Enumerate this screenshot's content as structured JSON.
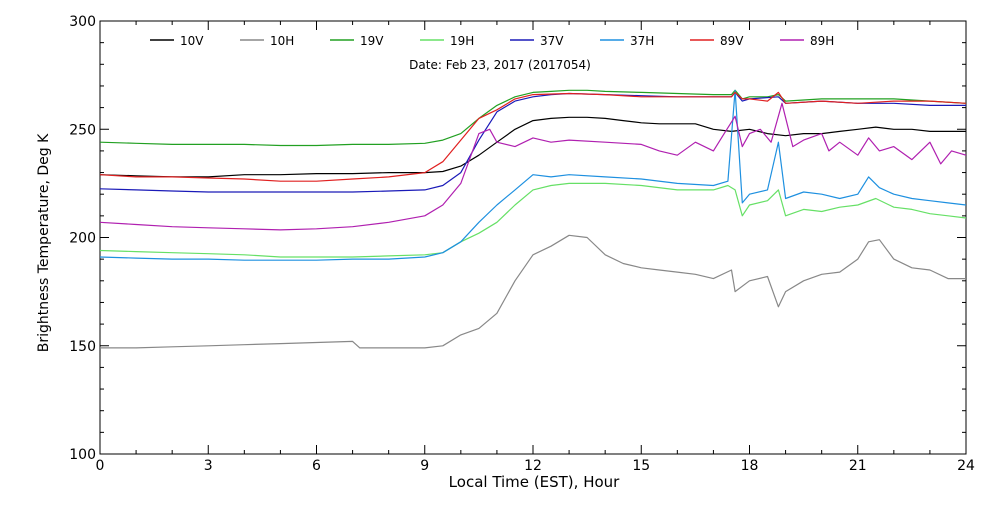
{
  "chart_data": {
    "type": "line",
    "title": "Date: Feb 23, 2017 (2017054)",
    "xlabel": "Local Time (EST), Hour",
    "ylabel": "Brightness Temperature, Deg K",
    "xlim": [
      0,
      24
    ],
    "ylim": [
      100,
      300
    ],
    "x_ticks": [
      0,
      3,
      6,
      9,
      12,
      15,
      18,
      21,
      24
    ],
    "y_ticks": [
      100,
      150,
      200,
      250,
      300
    ],
    "grid": false,
    "legend_position": "top",
    "series": [
      {
        "name": "10V",
        "color": "#000000",
        "points": [
          [
            0,
            229
          ],
          [
            1,
            228.5
          ],
          [
            2,
            228
          ],
          [
            3,
            228
          ],
          [
            4,
            229
          ],
          [
            5,
            229
          ],
          [
            6,
            229.5
          ],
          [
            7,
            229.5
          ],
          [
            8,
            230
          ],
          [
            9,
            230
          ],
          [
            9.5,
            230.5
          ],
          [
            10,
            233
          ],
          [
            10.5,
            238
          ],
          [
            11,
            244
          ],
          [
            11.5,
            250
          ],
          [
            12,
            254
          ],
          [
            12.5,
            255
          ],
          [
            13,
            255.5
          ],
          [
            13.5,
            255.5
          ],
          [
            14,
            255
          ],
          [
            14.5,
            254
          ],
          [
            15,
            253
          ],
          [
            15.5,
            252.5
          ],
          [
            16,
            252.5
          ],
          [
            16.5,
            252.5
          ],
          [
            17,
            250
          ],
          [
            17.5,
            249
          ],
          [
            18,
            250
          ],
          [
            18.5,
            248
          ],
          [
            19,
            247
          ],
          [
            19.5,
            248
          ],
          [
            20,
            248
          ],
          [
            20.5,
            249
          ],
          [
            21,
            250
          ],
          [
            21.5,
            251
          ],
          [
            22,
            250
          ],
          [
            22.5,
            250
          ],
          [
            23,
            249
          ],
          [
            23.5,
            249
          ],
          [
            24,
            249
          ]
        ]
      },
      {
        "name": "10H",
        "color": "#888888",
        "points": [
          [
            0,
            149
          ],
          [
            1,
            149
          ],
          [
            2,
            149.5
          ],
          [
            3,
            150
          ],
          [
            4,
            150.5
          ],
          [
            5,
            151
          ],
          [
            6,
            151.5
          ],
          [
            7,
            152
          ],
          [
            7.2,
            149
          ],
          [
            8,
            149
          ],
          [
            9,
            149
          ],
          [
            9.5,
            150
          ],
          [
            10,
            155
          ],
          [
            10.5,
            158
          ],
          [
            11,
            165
          ],
          [
            11.5,
            180
          ],
          [
            12,
            192
          ],
          [
            12.5,
            196
          ],
          [
            13,
            201
          ],
          [
            13.5,
            200
          ],
          [
            14,
            192
          ],
          [
            14.5,
            188
          ],
          [
            15,
            186
          ],
          [
            15.5,
            185
          ],
          [
            16,
            184
          ],
          [
            16.5,
            183
          ],
          [
            17,
            181
          ],
          [
            17.5,
            185
          ],
          [
            17.6,
            175
          ],
          [
            18,
            180
          ],
          [
            18.5,
            182
          ],
          [
            18.8,
            168
          ],
          [
            19,
            175
          ],
          [
            19.5,
            180
          ],
          [
            20,
            183
          ],
          [
            20.5,
            184
          ],
          [
            21,
            190
          ],
          [
            21.3,
            198
          ],
          [
            21.6,
            199
          ],
          [
            22,
            190
          ],
          [
            22.5,
            186
          ],
          [
            23,
            185
          ],
          [
            23.5,
            181
          ],
          [
            24,
            181
          ]
        ]
      },
      {
        "name": "19V",
        "color": "#22a022",
        "points": [
          [
            0,
            244
          ],
          [
            1,
            243.5
          ],
          [
            2,
            243
          ],
          [
            3,
            243
          ],
          [
            4,
            243
          ],
          [
            5,
            242.5
          ],
          [
            6,
            242.5
          ],
          [
            7,
            243
          ],
          [
            8,
            243
          ],
          [
            9,
            243.5
          ],
          [
            9.5,
            245
          ],
          [
            10,
            248
          ],
          [
            10.5,
            255
          ],
          [
            11,
            261
          ],
          [
            11.5,
            265
          ],
          [
            12,
            267
          ],
          [
            12.5,
            267.5
          ],
          [
            13,
            268
          ],
          [
            13.5,
            268
          ],
          [
            14,
            267.5
          ],
          [
            15,
            267
          ],
          [
            16,
            266.5
          ],
          [
            17,
            266
          ],
          [
            17.5,
            266
          ],
          [
            17.6,
            268
          ],
          [
            17.8,
            264
          ],
          [
            18,
            265
          ],
          [
            18.5,
            265
          ],
          [
            18.8,
            266
          ],
          [
            19,
            263
          ],
          [
            20,
            264
          ],
          [
            21,
            264
          ],
          [
            22,
            264
          ],
          [
            23,
            263
          ],
          [
            24,
            262
          ]
        ]
      },
      {
        "name": "19H",
        "color": "#66e066",
        "points": [
          [
            0,
            194
          ],
          [
            1,
            193.5
          ],
          [
            2,
            193
          ],
          [
            3,
            192.5
          ],
          [
            4,
            192
          ],
          [
            5,
            191
          ],
          [
            6,
            191
          ],
          [
            7,
            191
          ],
          [
            8,
            191.5
          ],
          [
            9,
            192
          ],
          [
            9.5,
            193
          ],
          [
            10,
            198
          ],
          [
            10.5,
            202
          ],
          [
            11,
            207
          ],
          [
            11.5,
            215
          ],
          [
            12,
            222
          ],
          [
            12.5,
            224
          ],
          [
            13,
            225
          ],
          [
            14,
            225
          ],
          [
            15,
            224
          ],
          [
            16,
            222
          ],
          [
            17,
            222
          ],
          [
            17.4,
            224
          ],
          [
            17.6,
            222
          ],
          [
            17.8,
            210
          ],
          [
            18,
            215
          ],
          [
            18.5,
            217
          ],
          [
            18.8,
            222
          ],
          [
            19,
            210
          ],
          [
            19.5,
            213
          ],
          [
            20,
            212
          ],
          [
            20.5,
            214
          ],
          [
            21,
            215
          ],
          [
            21.5,
            218
          ],
          [
            22,
            214
          ],
          [
            22.5,
            213
          ],
          [
            23,
            211
          ],
          [
            23.5,
            210
          ],
          [
            24,
            209
          ]
        ]
      },
      {
        "name": "37V",
        "color": "#1a1ab8",
        "points": [
          [
            0,
            222.5
          ],
          [
            1,
            222
          ],
          [
            2,
            221.5
          ],
          [
            3,
            221
          ],
          [
            4,
            221
          ],
          [
            5,
            221
          ],
          [
            6,
            221
          ],
          [
            7,
            221
          ],
          [
            8,
            221.5
          ],
          [
            9,
            222
          ],
          [
            9.5,
            224
          ],
          [
            10,
            230
          ],
          [
            10.5,
            245
          ],
          [
            11,
            258
          ],
          [
            11.5,
            263
          ],
          [
            12,
            265
          ],
          [
            12.5,
            266
          ],
          [
            13,
            266.5
          ],
          [
            14,
            266
          ],
          [
            15,
            265.5
          ],
          [
            16,
            265
          ],
          [
            17,
            265
          ],
          [
            17.5,
            265
          ],
          [
            17.6,
            267
          ],
          [
            17.8,
            263
          ],
          [
            18,
            264
          ],
          [
            18.8,
            265
          ],
          [
            19,
            262
          ],
          [
            20,
            263
          ],
          [
            21,
            262
          ],
          [
            22,
            262
          ],
          [
            23,
            261
          ],
          [
            24,
            261
          ]
        ]
      },
      {
        "name": "37H",
        "color": "#1e90e0",
        "points": [
          [
            0,
            191
          ],
          [
            1,
            190.5
          ],
          [
            2,
            190
          ],
          [
            3,
            190
          ],
          [
            4,
            189.5
          ],
          [
            5,
            189.5
          ],
          [
            6,
            189.5
          ],
          [
            7,
            190
          ],
          [
            8,
            190
          ],
          [
            9,
            191
          ],
          [
            9.5,
            193
          ],
          [
            10,
            198
          ],
          [
            10.5,
            207
          ],
          [
            11,
            215
          ],
          [
            11.5,
            222
          ],
          [
            12,
            229
          ],
          [
            12.5,
            228
          ],
          [
            13,
            229
          ],
          [
            14,
            228
          ],
          [
            15,
            227
          ],
          [
            16,
            225
          ],
          [
            17,
            224
          ],
          [
            17.4,
            226
          ],
          [
            17.6,
            268
          ],
          [
            17.8,
            216
          ],
          [
            18,
            220
          ],
          [
            18.5,
            222
          ],
          [
            18.8,
            244
          ],
          [
            19,
            218
          ],
          [
            19.5,
            221
          ],
          [
            20,
            220
          ],
          [
            20.5,
            218
          ],
          [
            21,
            220
          ],
          [
            21.3,
            228
          ],
          [
            21.6,
            223
          ],
          [
            22,
            220
          ],
          [
            22.5,
            218
          ],
          [
            23,
            217
          ],
          [
            23.5,
            216
          ],
          [
            24,
            215
          ]
        ]
      },
      {
        "name": "89V",
        "color": "#e02020",
        "points": [
          [
            0,
            229
          ],
          [
            1,
            228
          ],
          [
            2,
            228
          ],
          [
            3,
            227.5
          ],
          [
            4,
            227
          ],
          [
            5,
            226
          ],
          [
            6,
            226
          ],
          [
            7,
            227
          ],
          [
            8,
            228
          ],
          [
            9,
            230
          ],
          [
            9.5,
            235
          ],
          [
            10,
            245
          ],
          [
            10.5,
            255
          ],
          [
            11,
            259
          ],
          [
            11.5,
            264
          ],
          [
            12,
            266
          ],
          [
            13,
            266.5
          ],
          [
            14,
            266
          ],
          [
            15,
            265
          ],
          [
            16,
            265
          ],
          [
            17,
            265
          ],
          [
            17.5,
            265
          ],
          [
            17.6,
            267
          ],
          [
            17.8,
            264
          ],
          [
            18,
            264
          ],
          [
            18.5,
            263
          ],
          [
            18.8,
            267
          ],
          [
            19,
            262
          ],
          [
            20,
            263
          ],
          [
            21,
            262
          ],
          [
            22,
            263
          ],
          [
            23,
            263
          ],
          [
            24,
            262
          ]
        ]
      },
      {
        "name": "89H",
        "color": "#b020b0",
        "points": [
          [
            0,
            207
          ],
          [
            1,
            206
          ],
          [
            2,
            205
          ],
          [
            3,
            204.5
          ],
          [
            4,
            204
          ],
          [
            5,
            203.5
          ],
          [
            6,
            204
          ],
          [
            7,
            205
          ],
          [
            8,
            207
          ],
          [
            9,
            210
          ],
          [
            9.5,
            215
          ],
          [
            10,
            225
          ],
          [
            10.5,
            248
          ],
          [
            10.8,
            250
          ],
          [
            11,
            244
          ],
          [
            11.5,
            242
          ],
          [
            12,
            246
          ],
          [
            12.5,
            244
          ],
          [
            13,
            245
          ],
          [
            14,
            244
          ],
          [
            15,
            243
          ],
          [
            15.5,
            240
          ],
          [
            16,
            238
          ],
          [
            16.5,
            244
          ],
          [
            17,
            240
          ],
          [
            17.3,
            248
          ],
          [
            17.6,
            256
          ],
          [
            17.8,
            242
          ],
          [
            18,
            248
          ],
          [
            18.3,
            250
          ],
          [
            18.6,
            244
          ],
          [
            18.9,
            262
          ],
          [
            19.2,
            242
          ],
          [
            19.5,
            245
          ],
          [
            20,
            248
          ],
          [
            20.2,
            240
          ],
          [
            20.5,
            244
          ],
          [
            21,
            238
          ],
          [
            21.3,
            246
          ],
          [
            21.6,
            240
          ],
          [
            22,
            242
          ],
          [
            22.5,
            236
          ],
          [
            23,
            244
          ],
          [
            23.3,
            234
          ],
          [
            23.6,
            240
          ],
          [
            24,
            238
          ]
        ]
      }
    ]
  }
}
